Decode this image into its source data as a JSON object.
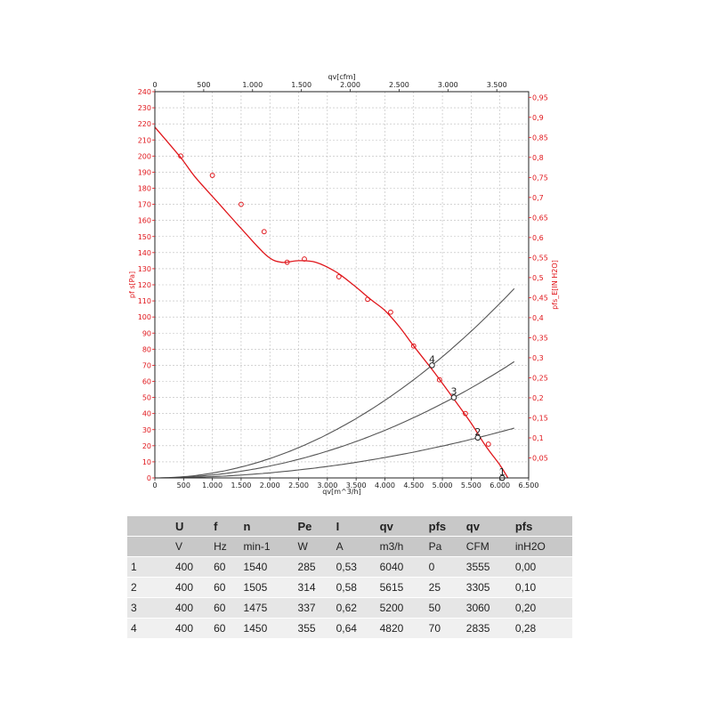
{
  "chart_data": {
    "type": "line",
    "x_bottom": {
      "label": "qv[m^3/h]",
      "range": [
        0,
        6500
      ],
      "ticks": [
        "0",
        "500",
        "1.000",
        "1.500",
        "2.000",
        "2.500",
        "3.000",
        "3.500",
        "4.000",
        "4.500",
        "5.000",
        "5.500",
        "6.000",
        "6.500"
      ]
    },
    "x_top": {
      "label": "qv[cfm]",
      "range": [
        0,
        3826
      ],
      "ticks": [
        "0",
        "500",
        "1.000",
        "1.500",
        "2.000",
        "2.500",
        "3.000",
        "3.500"
      ]
    },
    "y_left": {
      "label": "pf s[Pa]",
      "range": [
        0,
        240
      ],
      "ticks": [
        "0",
        "10",
        "20",
        "30",
        "40",
        "50",
        "60",
        "70",
        "80",
        "90",
        "100",
        "110",
        "120",
        "130",
        "140",
        "150",
        "160",
        "170",
        "180",
        "190",
        "200",
        "210",
        "220",
        "230",
        "240"
      ]
    },
    "y_right": {
      "label": "pfs_E[IN H2O]",
      "range": [
        0,
        0.964
      ],
      "ticks": [
        "0,05",
        "0,1",
        "0,15",
        "0,2",
        "0,25",
        "0,3",
        "0,35",
        "0,4",
        "0,45",
        "0,5",
        "0,55",
        "0,6",
        "0,65",
        "0,7",
        "0,75",
        "0,8",
        "0,85",
        "0,9",
        "0,95"
      ]
    },
    "grid": true,
    "colors": {
      "fan_curve": "#e0161b",
      "system_curves": "#555555",
      "grid": "#bbbbbb"
    },
    "fan_curve": {
      "points": [
        [
          0,
          218
        ],
        [
          450,
          199
        ],
        [
          700,
          187
        ],
        [
          1100,
          171
        ],
        [
          1550,
          153
        ],
        [
          1950,
          138
        ],
        [
          2200,
          134
        ],
        [
          2500,
          135
        ],
        [
          2800,
          134
        ],
        [
          3150,
          128
        ],
        [
          3450,
          120
        ],
        [
          3750,
          111
        ],
        [
          4000,
          104
        ],
        [
          4250,
          94
        ],
        [
          4500,
          82
        ],
        [
          4850,
          66
        ],
        [
          5200,
          49
        ],
        [
          5500,
          34
        ],
        [
          5750,
          20
        ],
        [
          6000,
          8
        ],
        [
          6140,
          0
        ]
      ],
      "markers": [
        [
          450,
          200
        ],
        [
          1000,
          188
        ],
        [
          1500,
          170
        ],
        [
          1900,
          153
        ],
        [
          2300,
          134
        ],
        [
          2600,
          136
        ],
        [
          3200,
          125
        ],
        [
          3700,
          111
        ],
        [
          4100,
          103
        ],
        [
          4500,
          82
        ],
        [
          4950,
          61
        ],
        [
          5400,
          40
        ],
        [
          5800,
          21
        ]
      ]
    },
    "system_curves": [
      {
        "points": [
          [
            400,
            1
          ],
          [
            1000,
            5
          ],
          [
            2000,
            19
          ],
          [
            3000,
            42
          ],
          [
            4000,
            74
          ],
          [
            4820,
            70
          ],
          [
            5500,
            97
          ],
          [
            6200,
            118
          ]
        ],
        "label": "4"
      },
      {
        "points": [
          [
            400,
            1
          ],
          [
            1000,
            3
          ],
          [
            2000,
            12
          ],
          [
            3000,
            27
          ],
          [
            4000,
            41
          ],
          [
            5200,
            50
          ],
          [
            5800,
            62
          ],
          [
            6250,
            72
          ]
        ],
        "label": "3"
      },
      {
        "points": [
          [
            400,
            0
          ],
          [
            1000,
            1
          ],
          [
            2000,
            5
          ],
          [
            3000,
            10
          ],
          [
            4000,
            14
          ],
          [
            5615,
            25
          ],
          [
            6250,
            32
          ]
        ],
        "label": "2"
      }
    ],
    "operating_points": [
      {
        "label": "1",
        "x": 6040,
        "y": 0
      },
      {
        "label": "2",
        "x": 5615,
        "y": 25
      },
      {
        "label": "3",
        "x": 5200,
        "y": 50
      },
      {
        "label": "4",
        "x": 4820,
        "y": 70
      }
    ]
  },
  "table": {
    "headers": [
      "",
      "U",
      "f",
      "n",
      "Pe",
      "I",
      "qv",
      "pfs",
      "qv",
      "pfs"
    ],
    "units": [
      "",
      "V",
      "Hz",
      "min-1",
      "W",
      "A",
      "m3/h",
      "Pa",
      "CFM",
      "inH2O"
    ],
    "rows": [
      [
        "1",
        "400",
        "60",
        "1540",
        "285",
        "0,53",
        "6040",
        "0",
        "3555",
        "0,00"
      ],
      [
        "2",
        "400",
        "60",
        "1505",
        "314",
        "0,58",
        "5615",
        "25",
        "3305",
        "0,10"
      ],
      [
        "3",
        "400",
        "60",
        "1475",
        "337",
        "0,62",
        "5200",
        "50",
        "3060",
        "0,20"
      ],
      [
        "4",
        "400",
        "60",
        "1450",
        "355",
        "0,64",
        "4820",
        "70",
        "2835",
        "0,28"
      ]
    ]
  }
}
